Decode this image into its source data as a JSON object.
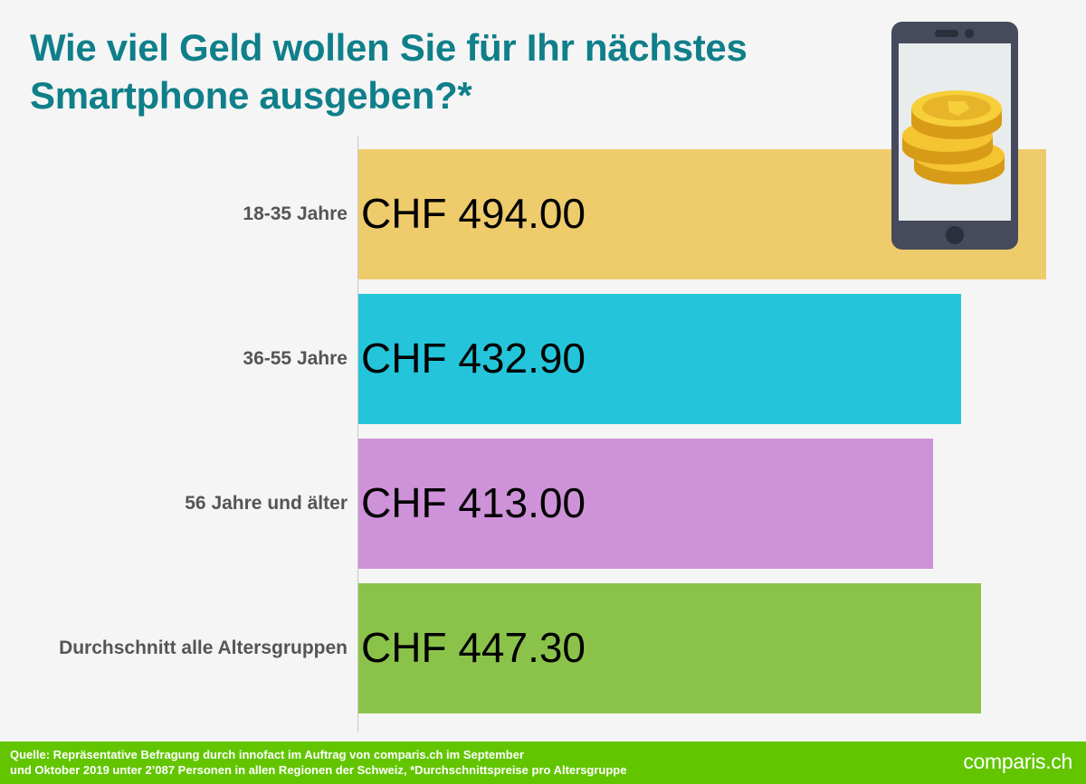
{
  "chart_data": {
    "type": "bar",
    "orientation": "horizontal",
    "title": "Wie viel Geld wollen Sie für Ihr nächstes Smartphone ausgeben?*",
    "categories": [
      "18-35 Jahre",
      "36-55 Jahre",
      "56 Jahre und älter",
      "Durchschnitt alle Altersgruppen"
    ],
    "values": [
      494.0,
      432.9,
      413.0,
      447.3
    ],
    "value_labels": [
      "CHF 494.00",
      "CHF 432.90",
      "CHF 413.00",
      "CHF 447.30"
    ],
    "colors": [
      "#eecb6b",
      "#24c5da",
      "#ce92d9",
      "#8bc34a"
    ],
    "xlim": [
      0,
      494
    ],
    "grid": false,
    "legend": "none"
  },
  "footer": {
    "source_line1": "Quelle: Repräsentative Befragung durch innofact im Auftrag von comparis.ch im September",
    "source_line2": "und Oktober 2019 unter 2’087 Personen in allen Regionen der Schweiz, *Durchschnittspreise pro Altersgruppe",
    "brand": "comparis.ch"
  },
  "icons": {
    "illustration": "smartphone-with-coins-icon"
  }
}
